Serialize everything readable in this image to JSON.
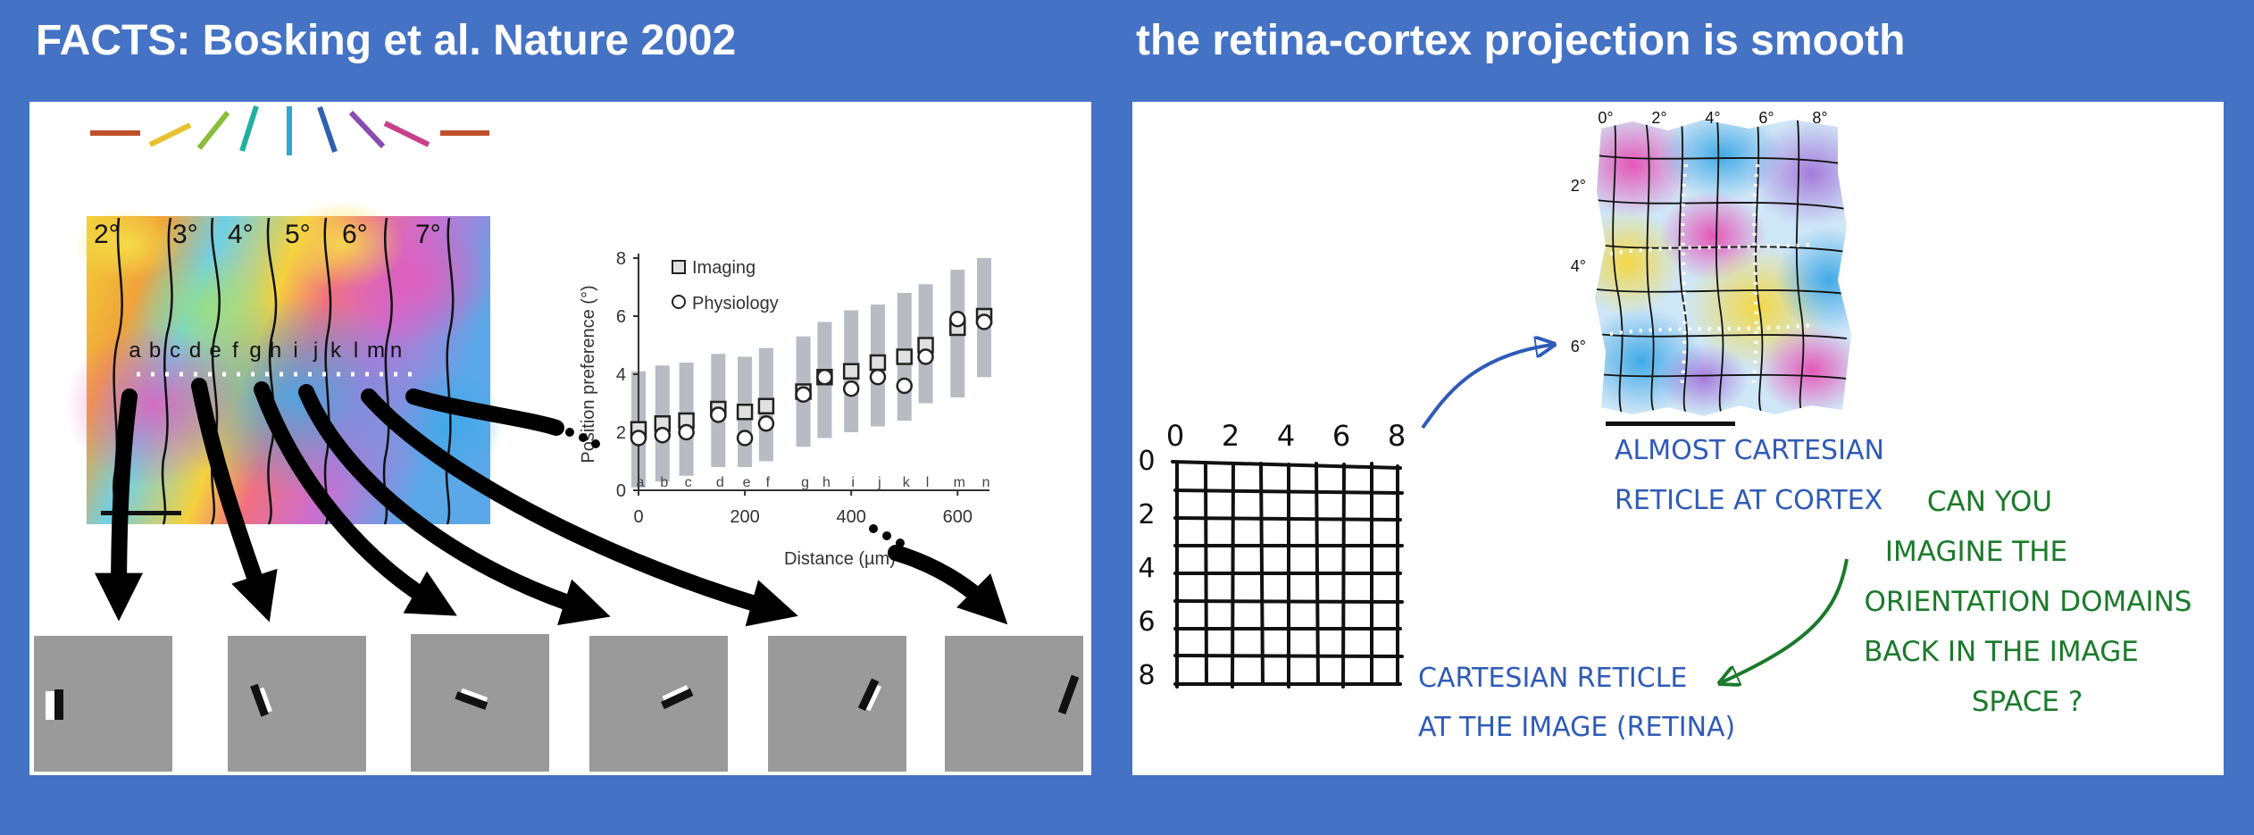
{
  "left_heading": "FACTS:   Bosking et al. Nature 2002",
  "right_heading": "the retina-cortex projection is smooth",
  "left_map": {
    "degree_labels": [
      "2°",
      "3°",
      "4°",
      "5°",
      "6°",
      "7°"
    ],
    "letters": [
      "a",
      "b",
      "c",
      "d",
      "e",
      "f",
      "g",
      "h",
      "i",
      "j",
      "k",
      "l",
      "m",
      "n"
    ]
  },
  "plot": {
    "ylabel": "Position preference (°)",
    "xlabel": "Distance (µm)",
    "legend_imaging": "Imaging",
    "legend_physiology": "Physiology",
    "x_ticks": [
      "0",
      "200",
      "400",
      "600"
    ],
    "y_ticks": [
      "0",
      "2",
      "4",
      "6",
      "8"
    ],
    "letters": [
      "a",
      "b",
      "c",
      "d",
      "e",
      "f",
      "g",
      "h",
      "i",
      "j",
      "k",
      "l",
      "m",
      "n"
    ]
  },
  "chart_data": {
    "type": "scatter",
    "xlabel": "Distance (µm)",
    "ylabel": "Position preference (°)",
    "xlim": [
      0,
      660
    ],
    "ylim": [
      0,
      8
    ],
    "legend_position": "top-left",
    "series": [
      {
        "name": "Imaging",
        "marker": "square",
        "x": [
          0,
          45,
          90,
          150,
          200,
          240,
          310,
          350,
          400,
          450,
          500,
          540,
          600,
          650
        ],
        "y": [
          2.1,
          2.3,
          2.4,
          2.8,
          2.7,
          2.9,
          3.4,
          3.9,
          4.1,
          4.4,
          4.6,
          5.0,
          5.6,
          6.0
        ]
      },
      {
        "name": "Physiology",
        "marker": "circle",
        "x": [
          0,
          45,
          90,
          150,
          200,
          240,
          310,
          350,
          400,
          450,
          500,
          540,
          600,
          650
        ],
        "y": [
          1.8,
          1.9,
          2.0,
          2.6,
          1.8,
          2.3,
          3.3,
          3.9,
          3.5,
          3.9,
          3.6,
          4.6,
          5.9,
          5.8
        ]
      }
    ],
    "bands": {
      "x": [
        0,
        45,
        90,
        150,
        200,
        240,
        310,
        350,
        400,
        450,
        500,
        540,
        600,
        650
      ],
      "low": [
        0.1,
        0.3,
        0.5,
        0.8,
        0.8,
        1.0,
        1.5,
        1.8,
        2.0,
        2.2,
        2.4,
        3.0,
        3.2,
        3.9
      ],
      "high": [
        4.1,
        4.3,
        4.4,
        4.7,
        4.6,
        4.9,
        5.3,
        5.8,
        6.2,
        6.4,
        6.8,
        7.1,
        7.6,
        8.0
      ]
    }
  },
  "reticle": {
    "top_labels": [
      "0",
      "2",
      "4",
      "6",
      "8"
    ],
    "side_labels": [
      "0",
      "2",
      "4",
      "6",
      "8"
    ],
    "caption_line1": "CARTESIAN RETICLE",
    "caption_line2": "AT THE IMAGE (RETINA)"
  },
  "cortex": {
    "top_labels": [
      "0°",
      "2°",
      "4°",
      "6°",
      "8°"
    ],
    "side_labels": [
      "2°",
      "4°",
      "6°"
    ],
    "caption_line1": "ALMOST CARTESIAN",
    "caption_line2": "RETICLE AT CORTEX"
  },
  "question": {
    "lines": [
      "CAN YOU",
      "IMAGINE THE",
      "ORIENTATION DOMAINS",
      "BACK IN THE IMAGE",
      "SPACE ?"
    ]
  },
  "colors": {
    "background": "#4472c4",
    "panel": "#ffffff",
    "handwriting_blue": "#2f5bb7",
    "handwriting_green": "#1a7a2a"
  }
}
